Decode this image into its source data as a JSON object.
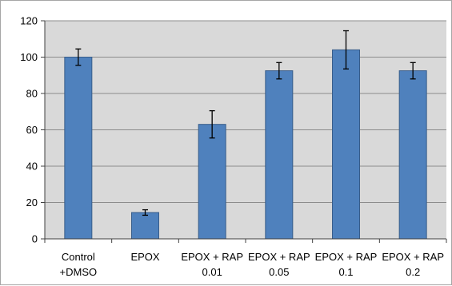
{
  "chart_data": {
    "type": "bar",
    "categories": [
      [
        "Control",
        "+DMSO"
      ],
      [
        "EPOX"
      ],
      [
        "EPOX + RAP",
        "0.01"
      ],
      [
        "EPOX + RAP",
        "0.05"
      ],
      [
        "EPOX + RAP",
        "0.1"
      ],
      [
        "EPOX + RAP",
        "0.2"
      ]
    ],
    "values": [
      100,
      14.5,
      63,
      92.5,
      104,
      92.5
    ],
    "error": [
      4.5,
      1.5,
      7.5,
      4.5,
      10.5,
      4.5
    ],
    "ylim": [
      0,
      120
    ],
    "yticks": [
      0,
      20,
      40,
      60,
      80,
      100,
      120
    ],
    "grid": true,
    "legend": "none",
    "colors": {
      "bar": "#4f81bd",
      "bar_edge": "#385d8a",
      "plot_bg": "#d9d9d9",
      "grid": "#8c8c8c",
      "axis": "#404040",
      "error_bar": "#000000"
    }
  }
}
